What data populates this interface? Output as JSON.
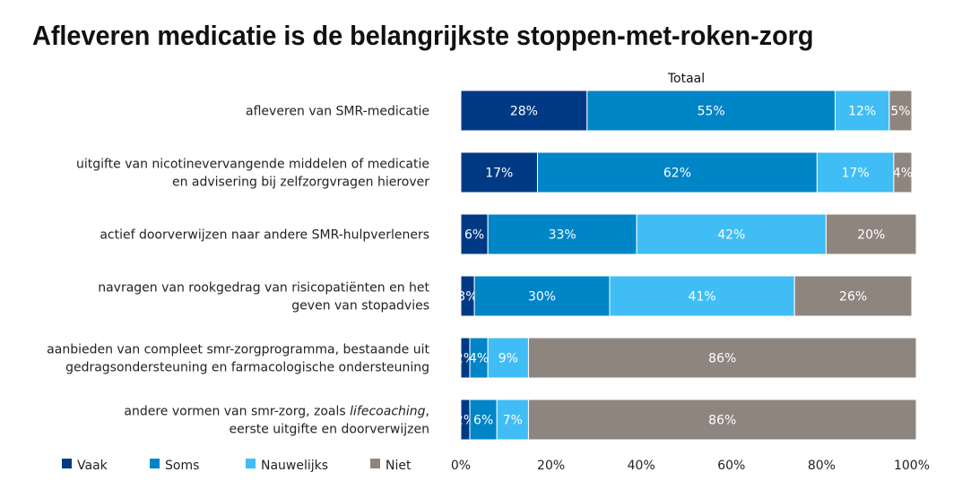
{
  "title": "Afleveren medicatie is de belangrijkste stoppen-met-roken-zorg",
  "chart_data": {
    "type": "bar",
    "orientation": "horizontal",
    "stacked": true,
    "panel_title": "Totaal",
    "categories": [
      [
        "afleveren van SMR-medicatie"
      ],
      [
        "uitgifte van nicotinevervangende middelen of medicatie",
        "en advisering bij zelfzorgvragen hierover"
      ],
      [
        "actief doorverwijzen naar andere SMR-hulpverleners"
      ],
      [
        "navragen van rookgedrag van risicopatiënten en het",
        "geven van stopadvies"
      ],
      [
        "aanbieden van compleet smr-zorgprogramma, bestaande uit",
        "gedragsondersteuning en farmacologische ondersteuning"
      ],
      [
        [
          "andere vormen van smr-zorg, zoals ",
          "lifecoaching",
          ","
        ],
        "eerste uitgifte en doorverwijzen"
      ]
    ],
    "series": [
      {
        "name": "Vaak",
        "color": "#003a84",
        "values": [
          28,
          17,
          6,
          3,
          2,
          2
        ]
      },
      {
        "name": "Soms",
        "color": "#0085c7",
        "values": [
          55,
          62,
          33,
          30,
          4,
          6
        ]
      },
      {
        "name": "Nauwelijks",
        "color": "#40bdf5",
        "values": [
          12,
          17,
          42,
          41,
          9,
          7
        ]
      },
      {
        "name": "Niet",
        "color": "#8f857f",
        "values": [
          5,
          4,
          20,
          26,
          86,
          86
        ]
      }
    ],
    "xlim": [
      0,
      100
    ],
    "xticks": [
      "0%",
      "20%",
      "40%",
      "60%",
      "80%",
      "100%"
    ],
    "value_suffix": "%",
    "grid": false,
    "legend_position": "bottom-left"
  }
}
